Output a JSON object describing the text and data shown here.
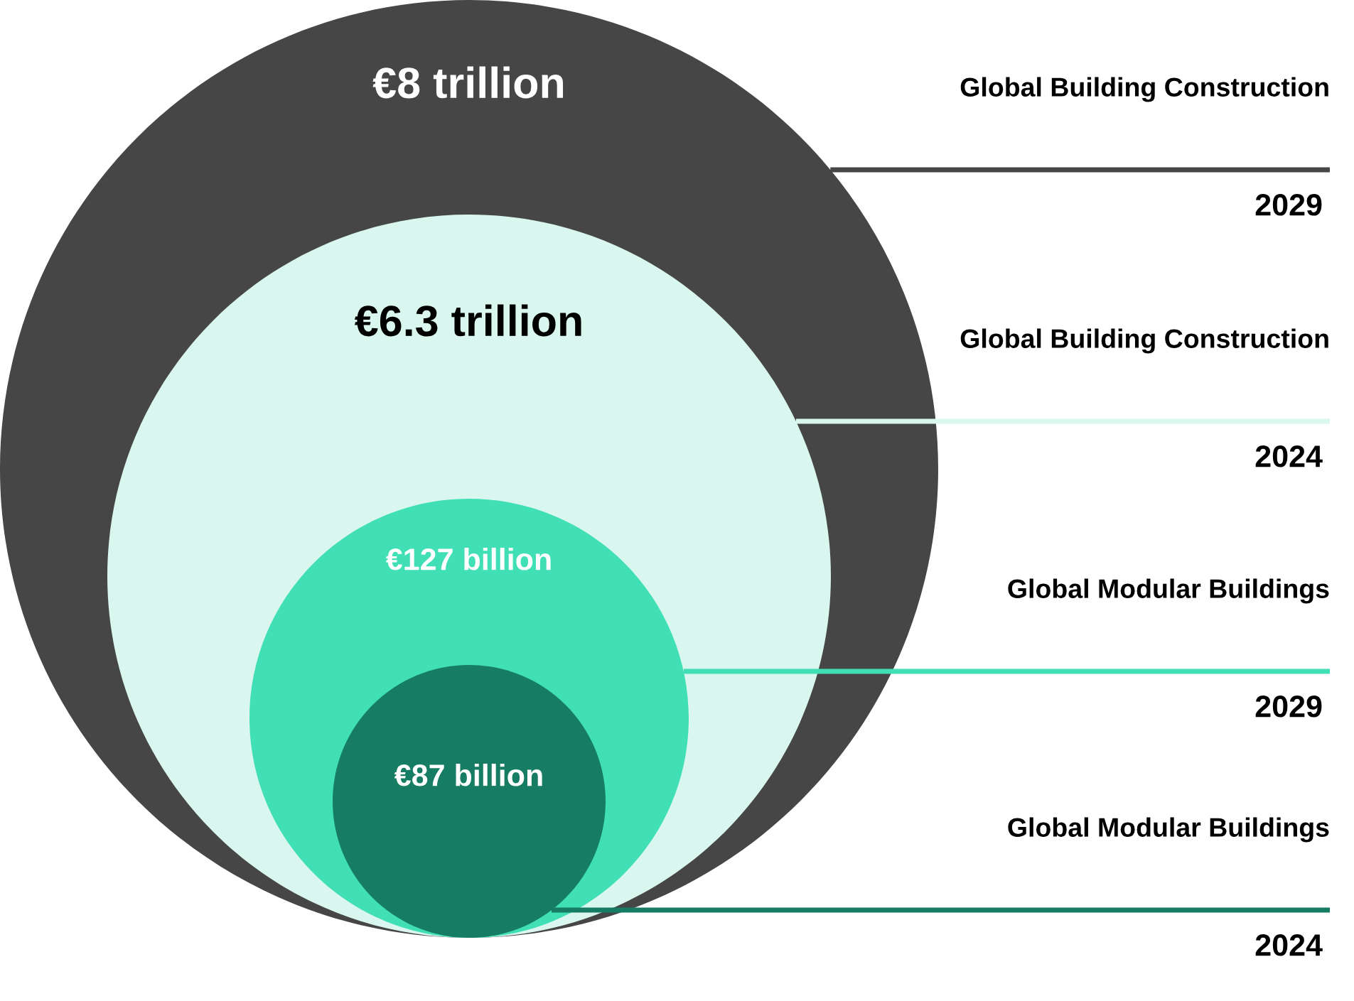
{
  "chart_data": {
    "type": "other",
    "categories": [
      "2029",
      "2024",
      "2029",
      "2024"
    ],
    "annotations": [
      "Global Building Construction",
      "Global Building Construction",
      "Global Modular Buildings",
      "Global Modular Buildings"
    ],
    "values": [
      8,
      6.3,
      127,
      87
    ],
    "value_labels": [
      "€8 trillion",
      "€6.3 trillion",
      "€127 billion",
      "€87 billion"
    ],
    "colors": [
      "#464646",
      "#d9f7ee",
      "#40dfb5",
      "#167c63"
    ]
  }
}
